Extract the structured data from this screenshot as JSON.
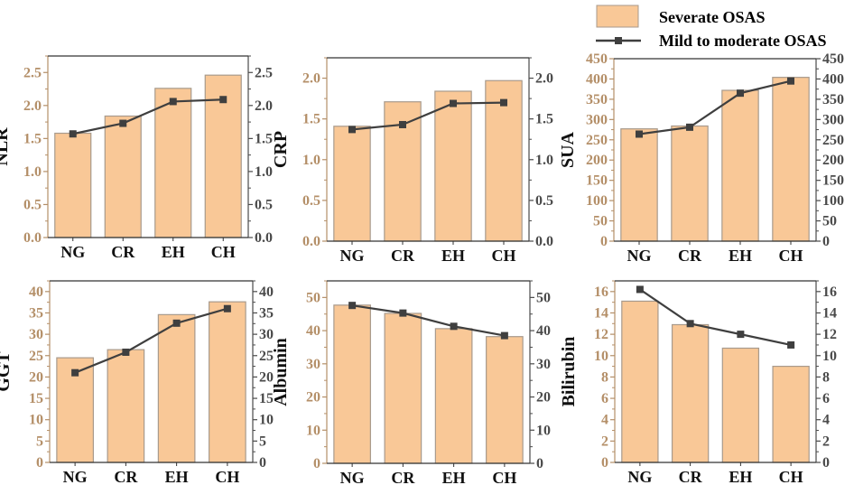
{
  "legend": {
    "bar_label": "Severate OSAS",
    "line_label": "Mild to moderate OSAS"
  },
  "colors": {
    "bar_fill": "#f9c897",
    "bar_stroke": "#a89a8c",
    "line": "#3f3f3f",
    "left_axis": "#b48f68",
    "right_axis": "#4a4a4a"
  },
  "chart_data": [
    {
      "type": "bar+line",
      "ylabel": "NLR",
      "categories": [
        "NG",
        "CR",
        "EH",
        "CH"
      ],
      "series": [
        {
          "name": "Severate OSAS",
          "type": "bar",
          "values": [
            1.58,
            1.84,
            2.26,
            2.46
          ]
        },
        {
          "name": "Mild to moderate OSAS",
          "type": "line",
          "values": [
            1.57,
            1.73,
            2.06,
            2.09
          ]
        }
      ],
      "ylim": [
        0,
        2.75
      ],
      "ytick_step": 0.5,
      "ytick_decimals": 1,
      "grid": false
    },
    {
      "type": "bar+line",
      "ylabel": "CRP",
      "categories": [
        "NG",
        "CR",
        "EH",
        "CH"
      ],
      "series": [
        {
          "name": "Severate OSAS",
          "type": "bar",
          "values": [
            1.41,
            1.71,
            1.84,
            1.97
          ]
        },
        {
          "name": "Mild to moderate OSAS",
          "type": "line",
          "values": [
            1.37,
            1.43,
            1.69,
            1.7
          ]
        }
      ],
      "ylim": [
        0,
        2.25
      ],
      "ytick_step": 0.5,
      "ytick_decimals": 1,
      "grid": false
    },
    {
      "type": "bar+line",
      "ylabel": "SUA",
      "categories": [
        "NG",
        "CR",
        "EH",
        "CH"
      ],
      "series": [
        {
          "name": "Severate OSAS",
          "type": "bar",
          "values": [
            277,
            284,
            372,
            404
          ]
        },
        {
          "name": "Mild to moderate OSAS",
          "type": "line",
          "values": [
            264,
            281,
            365,
            395
          ]
        }
      ],
      "ylim": [
        0,
        450
      ],
      "ytick_step": 50,
      "ytick_decimals": 0,
      "grid": false
    },
    {
      "type": "bar+line",
      "ylabel": "GGT",
      "categories": [
        "NG",
        "CR",
        "EH",
        "CH"
      ],
      "series": [
        {
          "name": "Severate OSAS",
          "type": "bar",
          "values": [
            24.5,
            26.4,
            34.6,
            37.6
          ]
        },
        {
          "name": "Mild to moderate OSAS",
          "type": "line",
          "values": [
            21.0,
            25.8,
            32.6,
            36.0
          ]
        }
      ],
      "ylim": [
        0,
        42.5
      ],
      "ytick_step": 5,
      "ytick_decimals": 0,
      "grid": false
    },
    {
      "type": "bar+line",
      "ylabel": "Albumin",
      "categories": [
        "NG",
        "CR",
        "EH",
        "CH"
      ],
      "series": [
        {
          "name": "Severate OSAS",
          "type": "bar",
          "values": [
            47.7,
            45.2,
            40.6,
            38.2
          ]
        },
        {
          "name": "Mild to moderate OSAS",
          "type": "line",
          "values": [
            47.6,
            45.3,
            41.3,
            38.5
          ]
        }
      ],
      "ylim": [
        0,
        55
      ],
      "ytick_step": 10,
      "ytick_decimals": 0,
      "grid": false
    },
    {
      "type": "bar+line",
      "ylabel": "Bilirubin",
      "categories": [
        "NG",
        "CR",
        "EH",
        "CH"
      ],
      "series": [
        {
          "name": "Severate OSAS",
          "type": "bar",
          "values": [
            15.1,
            12.9,
            10.7,
            9.0
          ]
        },
        {
          "name": "Mild to moderate OSAS",
          "type": "line",
          "values": [
            16.2,
            13.0,
            12.0,
            11.0
          ]
        }
      ],
      "ylim": [
        0,
        17
      ],
      "ytick_step": 2,
      "ytick_decimals": 0,
      "grid": false
    }
  ]
}
